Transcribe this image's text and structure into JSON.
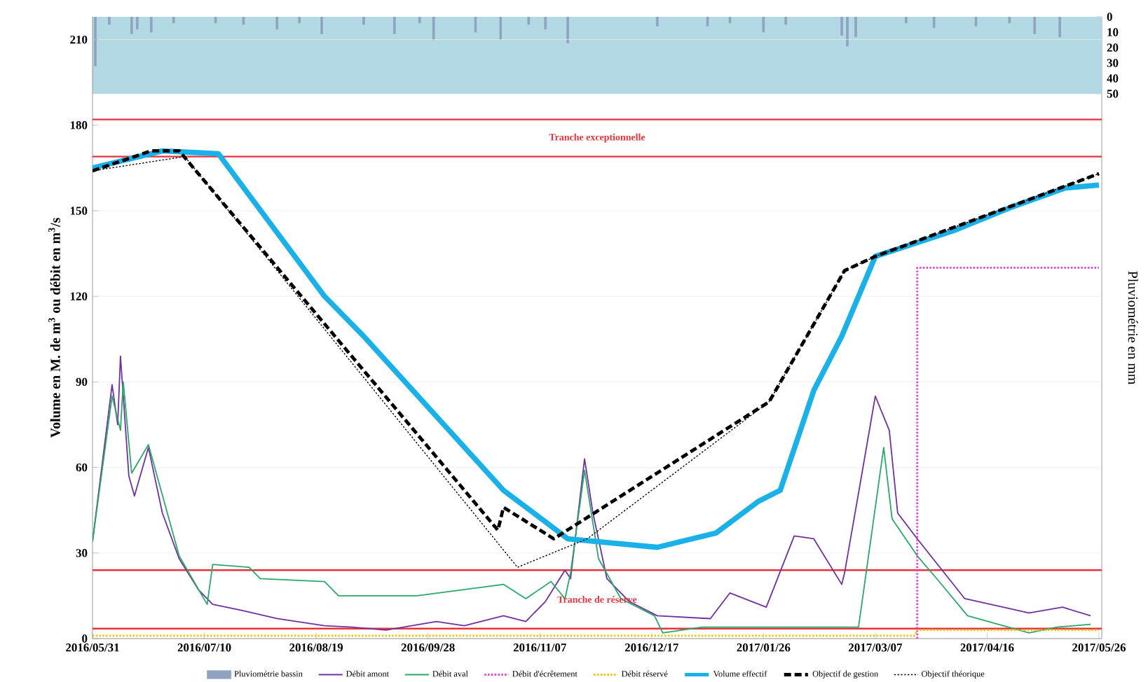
{
  "chart_data": {
    "type": "line",
    "ylabel": "Volume en M. de m$^{3}$ ou débit en m$^{3}$/s",
    "y2label": "Pluviométrie en mm",
    "xlim": [
      "2016-05-31",
      "2017-05-27"
    ],
    "xticks": [
      {
        "value": "2016-05-31",
        "label": "2016/05/31"
      },
      {
        "value": "2016-07-10",
        "label": "2016/07/10"
      },
      {
        "value": "2016-08-19",
        "label": "2016/08/19"
      },
      {
        "value": "2016-09-28",
        "label": "2016/09/28"
      },
      {
        "value": "2016-11-07",
        "label": "2016/11/07"
      },
      {
        "value": "2016-12-17",
        "label": "2016/12/17"
      },
      {
        "value": "2017-01-26",
        "label": "2017/01/26"
      },
      {
        "value": "2017-03-07",
        "label": "2017/03/07"
      },
      {
        "value": "2017-04-16",
        "label": "2017/04/16"
      },
      {
        "value": "2017-05-26",
        "label": "2017/05/26"
      }
    ],
    "ylim": [
      0,
      218
    ],
    "yticks": [
      0,
      30,
      60,
      90,
      120,
      150,
      180,
      210
    ],
    "y2lim": [
      404,
      0
    ],
    "y2ticks": [
      0,
      10,
      20,
      30,
      40,
      50
    ],
    "grid": "y",
    "legend": "bottom",
    "series": [
      {
        "name": "Pluviométrie bassin",
        "type": "bar",
        "axis": "y2",
        "color": "#8fa3c0",
        "x": [
          "2016-06-01",
          "2016-06-06",
          "2016-06-14",
          "2016-06-16",
          "2016-06-21",
          "2016-06-29",
          "2016-07-14",
          "2016-07-24",
          "2016-08-05",
          "2016-08-13",
          "2016-08-21",
          "2016-09-05",
          "2016-09-16",
          "2016-09-25",
          "2016-09-30",
          "2016-10-15",
          "2016-10-24",
          "2016-11-03",
          "2016-11-09",
          "2016-11-17",
          "2016-12-19",
          "2017-01-06",
          "2017-01-14",
          "2017-01-26",
          "2017-02-03",
          "2017-02-23",
          "2017-02-25",
          "2017-02-28",
          "2017-03-18",
          "2017-03-28",
          "2017-04-12",
          "2017-04-24",
          "2017-05-03",
          "2017-05-12"
        ],
        "values": [
          32,
          5,
          11,
          8,
          10,
          4,
          4,
          5,
          8,
          4,
          11,
          5,
          11,
          4,
          15,
          10,
          15,
          5,
          8,
          17,
          6,
          6,
          4,
          10,
          5,
          12,
          19,
          13,
          4,
          7,
          6,
          4,
          11,
          13
        ]
      },
      {
        "name": "Débit amont",
        "color": "#7030a0",
        "line_style": "solid",
        "x": [
          "2016-05-31",
          "2016-06-07",
          "2016-06-09",
          "2016-06-10",
          "2016-06-13",
          "2016-06-15",
          "2016-06-20",
          "2016-06-25",
          "2016-07-01",
          "2016-07-08",
          "2016-07-13",
          "2016-07-23",
          "2016-08-05",
          "2016-08-22",
          "2016-09-01",
          "2016-09-13",
          "2016-10-01",
          "2016-10-11",
          "2016-10-25",
          "2016-11-02",
          "2016-11-09",
          "2016-11-16",
          "2016-11-18",
          "2016-11-23",
          "2016-11-26",
          "2016-12-01",
          "2016-12-09",
          "2016-12-19",
          "2017-01-07",
          "2017-01-14",
          "2017-01-27",
          "2017-02-06",
          "2017-02-13",
          "2017-02-23",
          "2017-02-24",
          "2017-03-01",
          "2017-03-07",
          "2017-03-12",
          "2017-03-15",
          "2017-03-22",
          "2017-04-08",
          "2017-05-01",
          "2017-05-13",
          "2017-05-23"
        ],
        "values": [
          34,
          89,
          75,
          99,
          57,
          50,
          67,
          44,
          28,
          17,
          12,
          10,
          7,
          4.5,
          4,
          3,
          6,
          4.5,
          8,
          6,
          13,
          24,
          21,
          63,
          44,
          21,
          13,
          8,
          7,
          16,
          11,
          36,
          35,
          19,
          23,
          51,
          85,
          73,
          44,
          35,
          14,
          9,
          11,
          8
        ]
      },
      {
        "name": "Débit aval",
        "color": "#2aa86a",
        "line_style": "solid",
        "x": [
          "2016-05-31",
          "2016-06-07",
          "2016-06-10",
          "2016-06-11",
          "2016-06-14",
          "2016-06-20",
          "2016-07-01",
          "2016-07-11",
          "2016-07-13",
          "2016-07-26",
          "2016-07-30",
          "2016-08-22",
          "2016-08-27",
          "2016-09-24",
          "2016-10-25",
          "2016-11-02",
          "2016-11-11",
          "2016-11-16",
          "2016-11-18",
          "2016-11-23",
          "2016-11-28",
          "2016-12-06",
          "2016-12-18",
          "2016-12-21",
          "2017-01-04",
          "2017-03-01",
          "2017-03-10",
          "2017-03-13",
          "2017-03-22",
          "2017-03-29",
          "2017-04-09",
          "2017-05-01",
          "2017-05-11",
          "2017-05-23"
        ],
        "values": [
          34,
          85,
          73,
          90,
          58,
          68,
          29,
          12,
          26,
          25,
          21,
          20,
          15,
          15,
          19,
          14,
          20,
          14,
          23,
          59,
          28,
          14,
          8,
          2,
          4,
          4,
          67,
          42,
          29,
          21,
          8,
          2,
          4,
          5
        ]
      },
      {
        "name": "Débit d'écrêtement",
        "color": "#e040d8",
        "line_style": "dotted",
        "x": [
          "2017-03-22",
          "2017-03-22",
          "2017-05-26"
        ],
        "values": [
          0,
          130,
          130
        ]
      },
      {
        "name": "Débit réservé",
        "color": "#f2c200",
        "line_style": "dotted",
        "x": [
          "2016-05-31",
          "2017-03-21",
          "2017-03-22",
          "2017-05-26"
        ],
        "values": [
          1,
          1,
          3,
          3
        ]
      },
      {
        "name": "Volume effectif",
        "color": "#1ab0e8",
        "line_style": "solid",
        "x": [
          "2016-05-31",
          "2016-06-25",
          "2016-07-15",
          "2016-08-22",
          "2016-09-05",
          "2016-10-25",
          "2016-11-17",
          "2016-12-19",
          "2017-01-09",
          "2017-01-24",
          "2017-02-01",
          "2017-02-13",
          "2017-02-23",
          "2017-03-01",
          "2017-03-07",
          "2017-04-04",
          "2017-04-24",
          "2017-05-14",
          "2017-05-26"
        ],
        "values": [
          165,
          171,
          170,
          120,
          106,
          52,
          35,
          32,
          37,
          48,
          52,
          87,
          106,
          120,
          134,
          143,
          151,
          158,
          159
        ]
      },
      {
        "name": "Objectif de gestion",
        "color": "#000000",
        "line_style": "dashed",
        "x": [
          "2016-05-31",
          "2016-06-21",
          "2016-07-01",
          "2016-10-23",
          "2016-10-25",
          "2016-11-12",
          "2017-01-28",
          "2017-02-24",
          "2017-03-07",
          "2017-05-26"
        ],
        "values": [
          164,
          171,
          171,
          38,
          46,
          35,
          83,
          129,
          134,
          163
        ]
      },
      {
        "name": "Objectif théorique",
        "color": "#000000",
        "line_style": "dotted",
        "x": [
          "2016-05-31",
          "2016-07-03",
          "2016-10-30",
          "2016-11-24",
          "2017-01-28",
          "2017-02-24",
          "2017-03-07",
          "2017-05-26"
        ],
        "values": [
          164,
          169,
          25,
          35,
          83,
          129,
          134,
          163
        ]
      }
    ],
    "ref_lines": [
      {
        "axis": "y",
        "value": 182,
        "color": "#e8323c",
        "label": "Tranche exceptionnelle"
      },
      {
        "axis": "y",
        "value": 169,
        "color": "#e8323c"
      },
      {
        "axis": "y",
        "value": 24,
        "color": "#e8323c",
        "label": "Tranche de réserve"
      },
      {
        "axis": "y",
        "value": 3.5,
        "color": "#e8323c"
      }
    ],
    "bands": [
      {
        "axis": "y2",
        "from": 0,
        "to": 50,
        "color": "#b3d9e4"
      }
    ]
  }
}
